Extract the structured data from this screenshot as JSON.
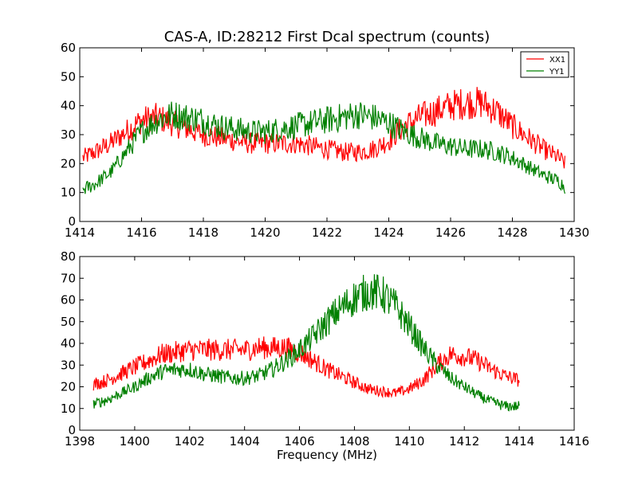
{
  "chart_data": [
    {
      "type": "line",
      "title": "CAS-A, ID:28212 First Dcal spectrum (counts)",
      "xlabel": "",
      "ylabel": "",
      "xlim": [
        1414,
        1430
      ],
      "ylim": [
        0,
        60
      ],
      "xticks": [
        1414,
        1416,
        1418,
        1420,
        1422,
        1424,
        1426,
        1428,
        1430
      ],
      "yticks": [
        0,
        10,
        20,
        30,
        40,
        50,
        60
      ],
      "legend": {
        "placement": "top-right"
      },
      "x": [
        1414.1,
        1414.5,
        1415.0,
        1415.5,
        1416.0,
        1416.5,
        1417.0,
        1417.5,
        1418.0,
        1418.5,
        1419.0,
        1419.5,
        1420.0,
        1420.5,
        1421.0,
        1421.5,
        1422.0,
        1422.5,
        1423.0,
        1423.5,
        1424.0,
        1424.5,
        1425.0,
        1425.5,
        1426.0,
        1426.5,
        1427.0,
        1427.5,
        1428.0,
        1428.5,
        1429.0,
        1429.5,
        1429.7
      ],
      "series": [
        {
          "name": "XX1",
          "color": "#ff0000",
          "values": [
            22,
            24,
            27,
            31,
            35,
            36,
            34,
            32,
            30,
            29,
            28,
            27,
            27,
            27,
            27,
            26,
            25,
            24,
            24,
            25,
            28,
            33,
            36,
            38,
            40,
            41,
            41,
            38,
            33,
            29,
            25,
            22,
            20
          ]
        },
        {
          "name": "YY1",
          "color": "#008000",
          "values": [
            11,
            13,
            17,
            24,
            31,
            35,
            37,
            36,
            35,
            33,
            32,
            31,
            31,
            32,
            33,
            34,
            35,
            36,
            37,
            36,
            34,
            31,
            29,
            27,
            26,
            25,
            25,
            24,
            22,
            19,
            16,
            14,
            12
          ]
        }
      ]
    },
    {
      "type": "line",
      "title": "",
      "xlabel": "Frequency (MHz)",
      "ylabel": "",
      "xlim": [
        1398,
        1416
      ],
      "ylim": [
        0,
        80
      ],
      "xticks": [
        1398,
        1400,
        1402,
        1404,
        1406,
        1408,
        1410,
        1412,
        1414,
        1416
      ],
      "yticks": [
        0,
        10,
        20,
        30,
        40,
        50,
        60,
        70,
        80
      ],
      "x": [
        1398.5,
        1399.0,
        1399.5,
        1400.0,
        1400.5,
        1401.0,
        1401.5,
        1402.0,
        1402.5,
        1403.0,
        1403.5,
        1404.0,
        1404.5,
        1405.0,
        1405.5,
        1406.0,
        1406.5,
        1407.0,
        1407.5,
        1408.0,
        1408.5,
        1409.0,
        1409.5,
        1410.0,
        1410.5,
        1411.0,
        1411.5,
        1412.0,
        1412.5,
        1413.0,
        1413.5,
        1414.0
      ],
      "series": [
        {
          "name": "XX1",
          "color": "#ff0000",
          "values": [
            21,
            23,
            26,
            29,
            32,
            35,
            36,
            37,
            37,
            37,
            37,
            37,
            38,
            38,
            38,
            36,
            32,
            28,
            25,
            22,
            19,
            18,
            17,
            19,
            23,
            30,
            35,
            34,
            32,
            28,
            25,
            23
          ]
        },
        {
          "name": "YY1",
          "color": "#008000",
          "values": [
            12,
            14,
            17,
            20,
            24,
            27,
            28,
            28,
            26,
            25,
            24,
            24,
            25,
            28,
            32,
            37,
            43,
            50,
            56,
            61,
            64,
            63,
            57,
            48,
            38,
            30,
            24,
            20,
            16,
            13,
            11,
            11
          ]
        }
      ]
    }
  ]
}
